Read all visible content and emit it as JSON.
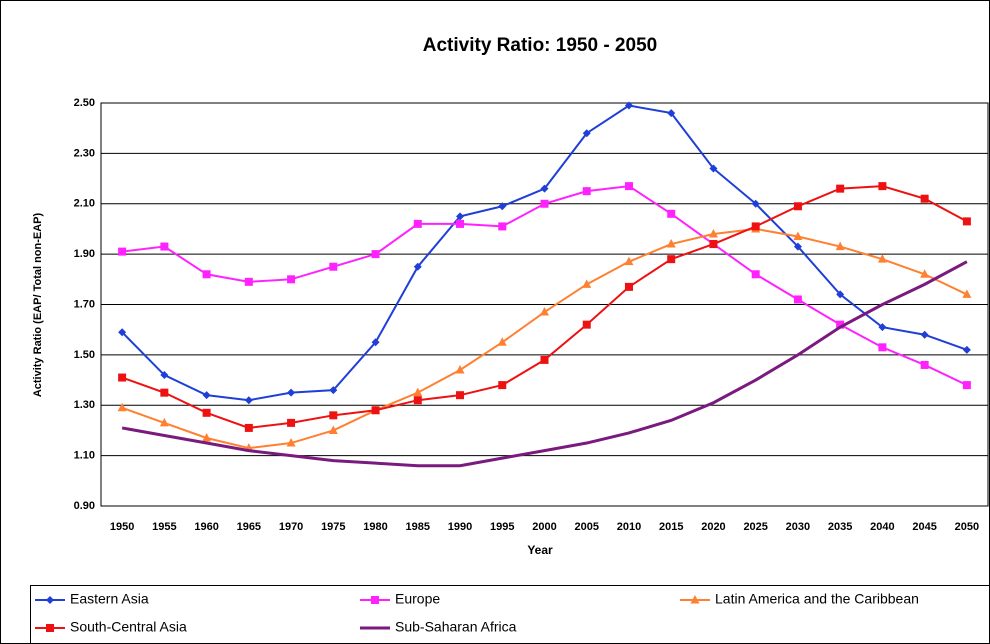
{
  "chart_data": {
    "type": "line",
    "title": "Activity Ratio: 1950 - 2050",
    "x_label": "Year",
    "y_label": "Activity Ratio (EAP/ Total non-EAP)",
    "categories": [
      "1950",
      "1955",
      "1960",
      "1965",
      "1970",
      "1975",
      "1980",
      "1985",
      "1990",
      "1995",
      "2000",
      "2005",
      "2010",
      "2015",
      "2020",
      "2025",
      "2030",
      "2035",
      "2040",
      "2045",
      "2050"
    ],
    "ylim": [
      0.9,
      2.5
    ],
    "yticks": [
      {
        "value": 0.9,
        "label": "0.90"
      },
      {
        "value": 1.1,
        "label": "1.10"
      },
      {
        "value": 1.3,
        "label": "1.30"
      },
      {
        "value": 1.5,
        "label": "1.50"
      },
      {
        "value": 1.7,
        "label": "1.70"
      },
      {
        "value": 1.9,
        "label": "1.90"
      },
      {
        "value": 2.1,
        "label": "2.10"
      },
      {
        "value": 2.3,
        "label": "2.30"
      },
      {
        "value": 2.5,
        "label": "2.50"
      }
    ],
    "grid": true,
    "legend": "bottom",
    "series": [
      {
        "name": "Eastern Asia",
        "color": "#1f3fd6",
        "marker": "diamond",
        "values": [
          1.59,
          1.42,
          1.34,
          1.32,
          1.35,
          1.36,
          1.55,
          1.85,
          2.05,
          2.09,
          2.16,
          2.38,
          2.49,
          2.46,
          2.24,
          2.1,
          1.93,
          1.74,
          1.61,
          1.58,
          1.52
        ]
      },
      {
        "name": "Europe",
        "color": "#ff22ff",
        "marker": "square",
        "values": [
          1.91,
          1.93,
          1.82,
          1.79,
          1.8,
          1.85,
          1.9,
          2.02,
          2.02,
          2.01,
          2.1,
          2.15,
          2.17,
          2.06,
          1.94,
          1.82,
          1.72,
          1.62,
          1.53,
          1.46,
          1.38
        ]
      },
      {
        "name": "Latin America and the Caribbean",
        "color": "#ff8030",
        "marker": "triangle",
        "values": [
          1.29,
          1.23,
          1.17,
          1.13,
          1.15,
          1.2,
          1.28,
          1.35,
          1.44,
          1.55,
          1.67,
          1.78,
          1.87,
          1.94,
          1.98,
          2.0,
          1.97,
          1.93,
          1.88,
          1.82,
          1.74
        ]
      },
      {
        "name": "South-Central Asia",
        "color": "#ee1111",
        "marker": "square",
        "values": [
          1.41,
          1.35,
          1.27,
          1.21,
          1.23,
          1.26,
          1.28,
          1.32,
          1.34,
          1.38,
          1.48,
          1.62,
          1.77,
          1.88,
          1.94,
          2.01,
          2.09,
          2.16,
          2.17,
          2.12,
          2.03
        ]
      },
      {
        "name": "Sub-Saharan Africa",
        "color": "#7a1a7e",
        "marker": "none",
        "values": [
          1.21,
          1.18,
          1.15,
          1.12,
          1.1,
          1.08,
          1.07,
          1.06,
          1.06,
          1.09,
          1.12,
          1.15,
          1.19,
          1.24,
          1.31,
          1.4,
          1.5,
          1.61,
          1.7,
          1.78,
          1.87
        ]
      }
    ]
  }
}
